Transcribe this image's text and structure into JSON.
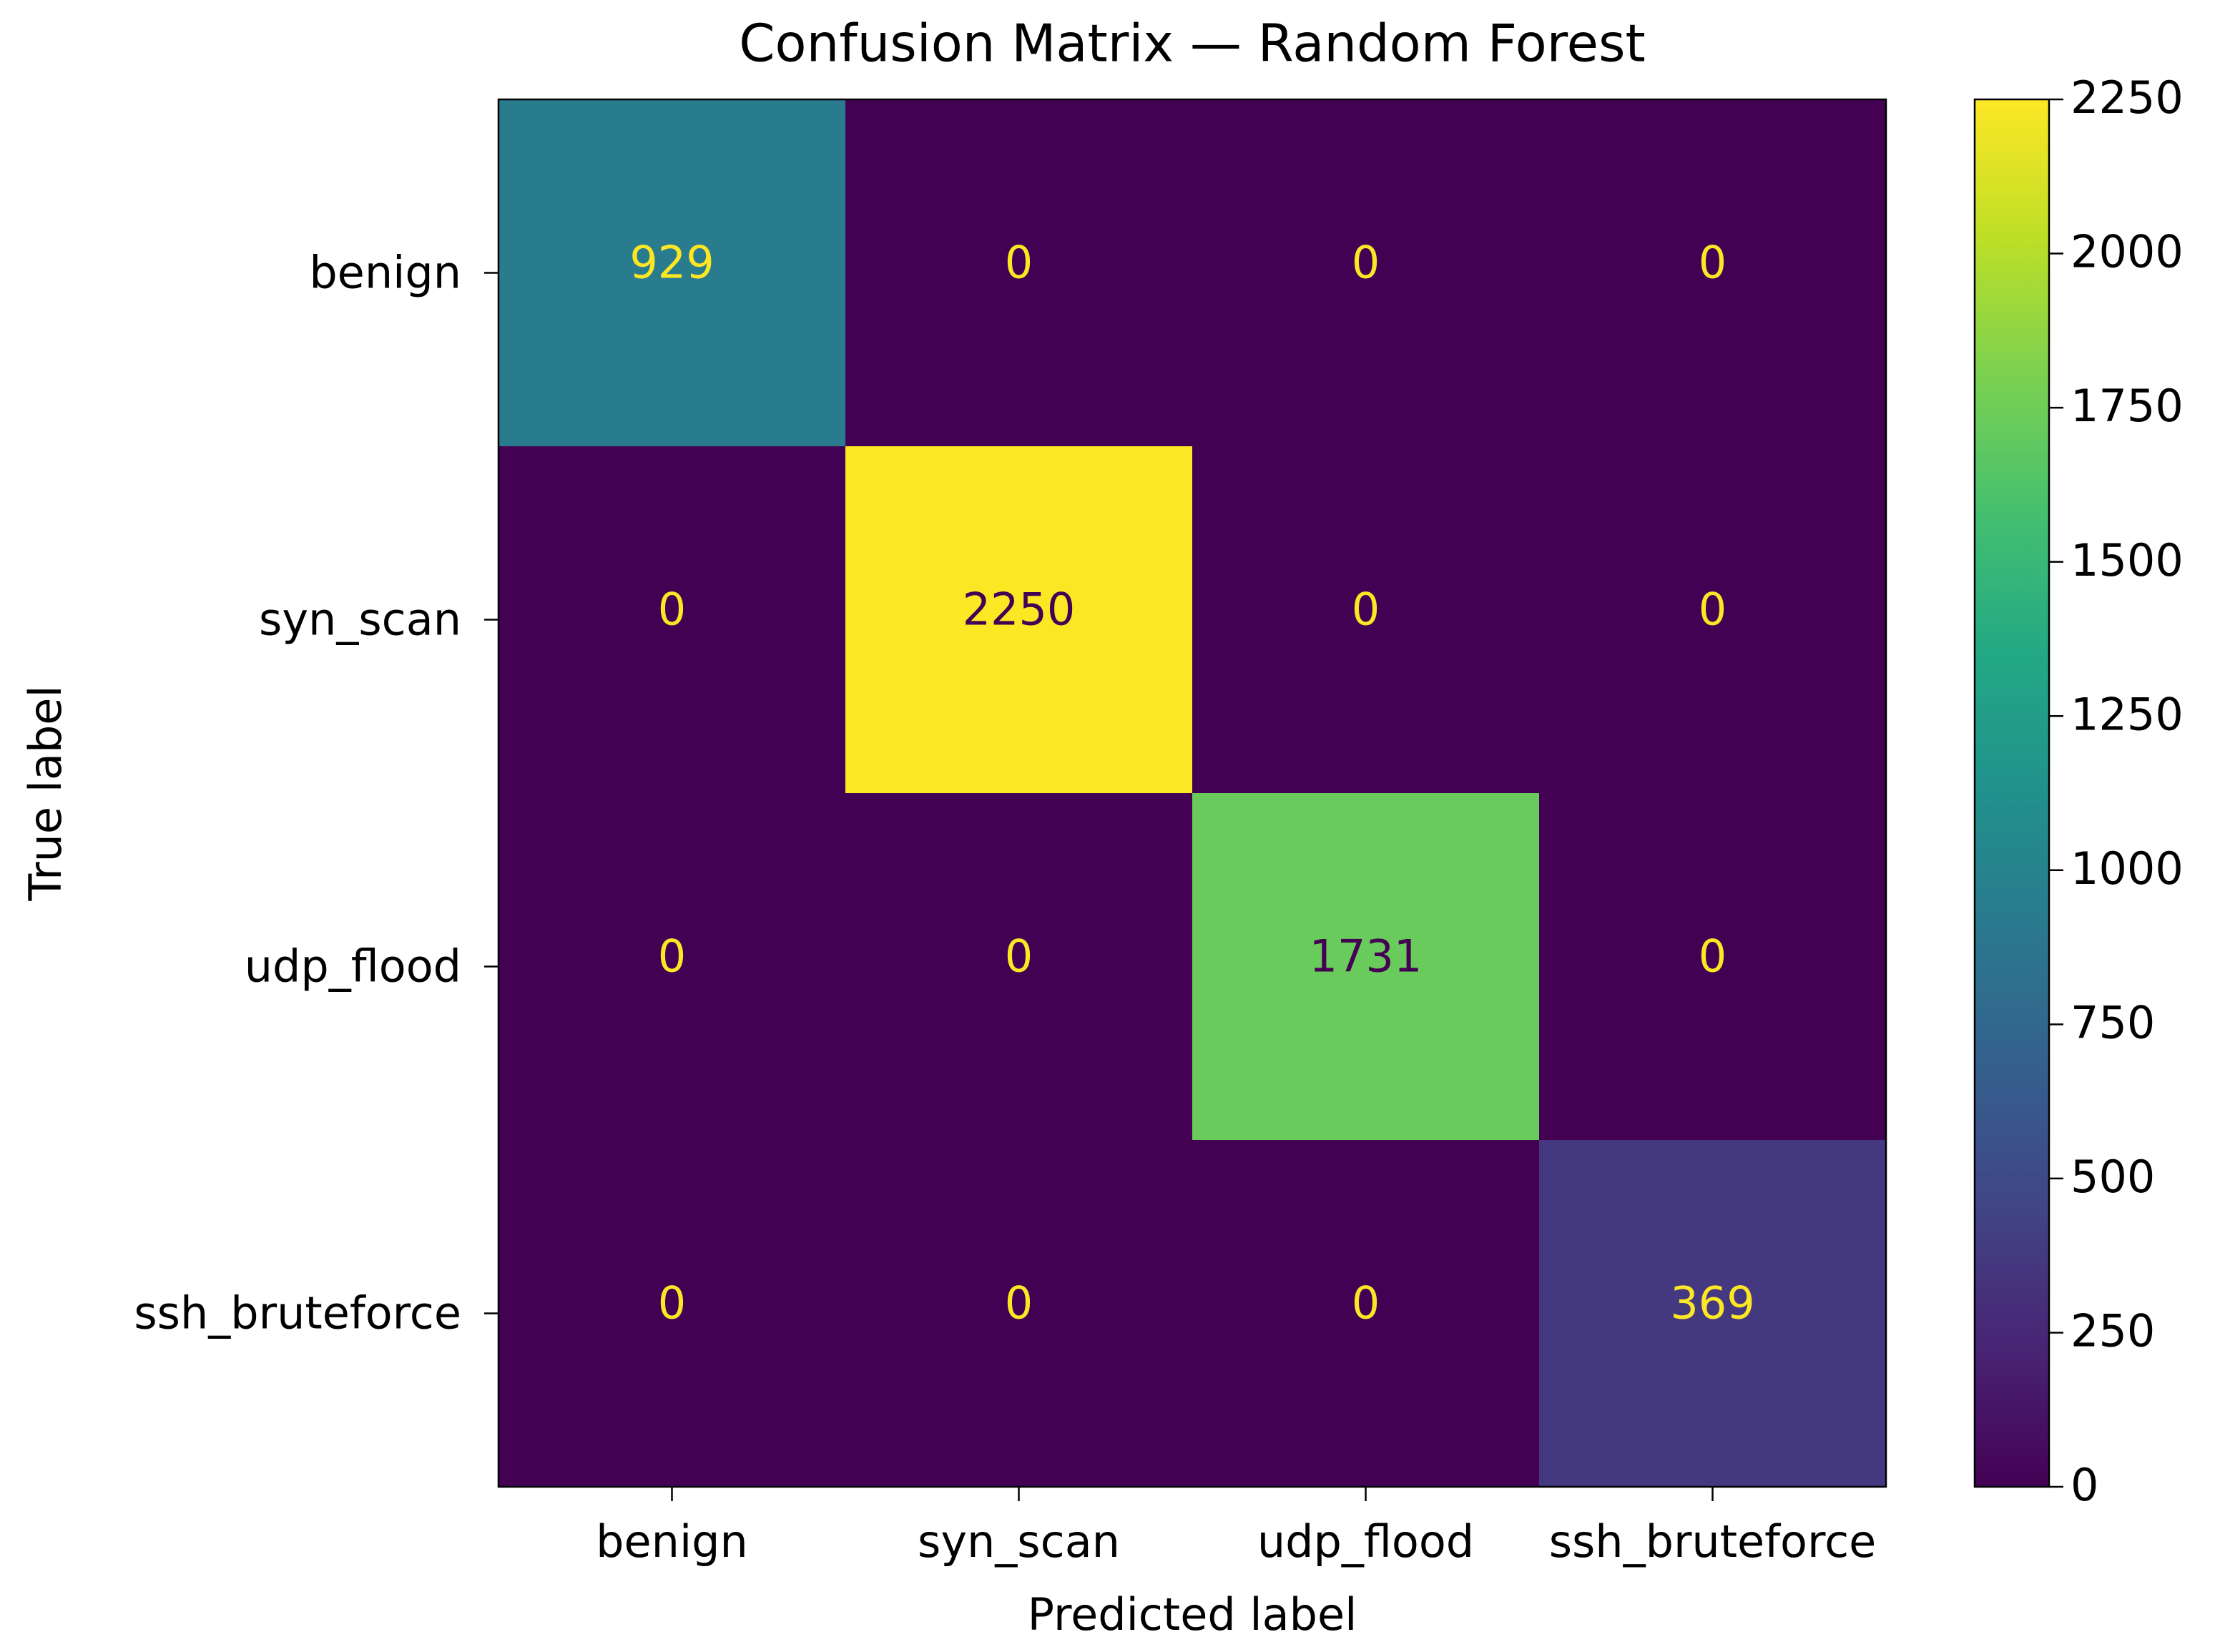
{
  "chart_data": {
    "type": "heatmap",
    "title": "Confusion Matrix — Random Forest",
    "xlabel": "Predicted label",
    "ylabel": "True label",
    "x_categories": [
      "benign",
      "syn_scan",
      "udp_flood",
      "ssh_bruteforce"
    ],
    "y_categories": [
      "benign",
      "syn_scan",
      "udp_flood",
      "ssh_bruteforce"
    ],
    "values": [
      [
        929,
        0,
        0,
        0
      ],
      [
        0,
        2250,
        0,
        0
      ],
      [
        0,
        0,
        1731,
        0
      ],
      [
        0,
        0,
        0,
        369
      ]
    ],
    "colormap": "viridis",
    "clim": [
      0,
      2250
    ],
    "colorbar_ticks": [
      0,
      250,
      500,
      750,
      1000,
      1250,
      1500,
      1750,
      2000,
      2250
    ]
  }
}
